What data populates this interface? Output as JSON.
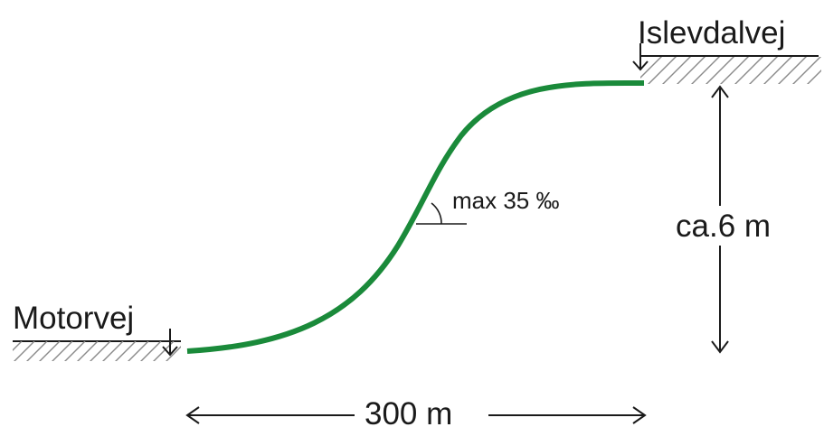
{
  "diagram": {
    "left_road_label": "Motorvej",
    "right_road_label": "Islevdalvej",
    "slope_label": "max 35 ‰",
    "height_label": "ca.6 m",
    "length_label": "300 m"
  },
  "colors": {
    "road_profile": "#1a8a3a",
    "ink": "#1a1a1a",
    "hatch": "#8a8a8a",
    "background": "#ffffff"
  },
  "icons": {
    "left_level_marker": "level-arrow-down-icon",
    "right_level_marker": "level-arrow-down-icon",
    "height_arrow": "double-arrow-vertical-icon",
    "length_arrow": "double-arrow-horizontal-icon",
    "slope_angle": "angle-arc-icon"
  }
}
